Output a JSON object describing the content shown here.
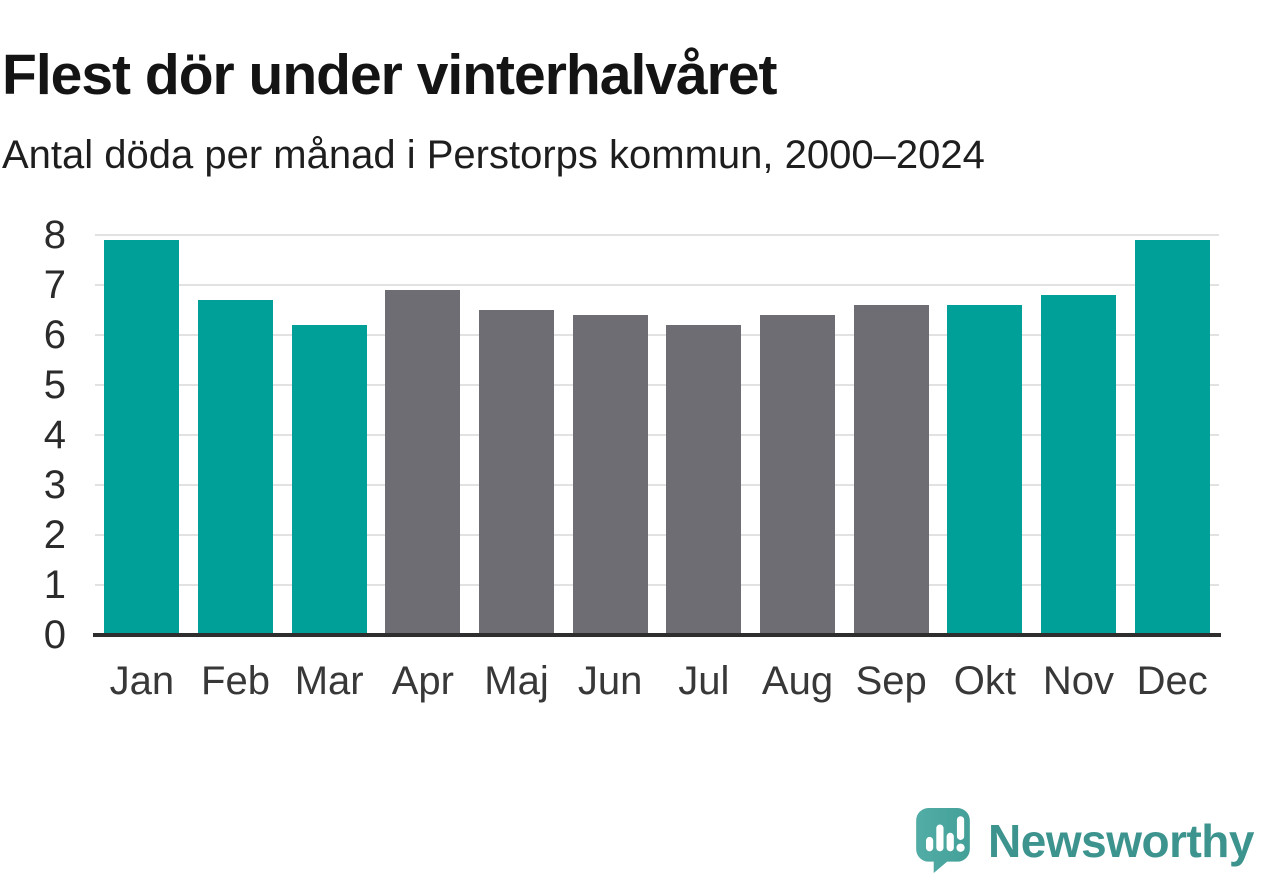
{
  "header": {
    "title": "Flest dör under vinterhalvåret",
    "subtitle": "Antal döda per månad i Perstorps kommun, 2000–2024"
  },
  "chart_data": {
    "type": "bar",
    "title": "Flest dör under vinterhalvåret",
    "subtitle": "Antal döda per månad i Perstorps kommun, 2000–2024",
    "categories": [
      "Jan",
      "Feb",
      "Mar",
      "Apr",
      "Maj",
      "Jun",
      "Jul",
      "Aug",
      "Sep",
      "Okt",
      "Nov",
      "Dec"
    ],
    "values": [
      7.9,
      6.7,
      6.2,
      6.9,
      6.5,
      6.4,
      6.2,
      6.4,
      6.6,
      6.6,
      6.8,
      7.9
    ],
    "bar_color_keys": [
      "highlight",
      "highlight",
      "highlight",
      "base",
      "base",
      "base",
      "base",
      "base",
      "base",
      "highlight",
      "highlight",
      "highlight"
    ],
    "colors": {
      "highlight": "#00a099",
      "base": "#6e6d73",
      "gridline": "#e2e2e2",
      "axis": "#2e2e2e"
    },
    "xlabel": "",
    "ylabel": "",
    "ylim": [
      0,
      8
    ],
    "yticks": [
      0,
      1,
      2,
      3,
      4,
      5,
      6,
      7,
      8
    ],
    "grid": true,
    "legend": false
  },
  "footer": {
    "brand": "Newsworthy",
    "brand_color": "#3d948e",
    "logo_color": "#4aa59d"
  }
}
